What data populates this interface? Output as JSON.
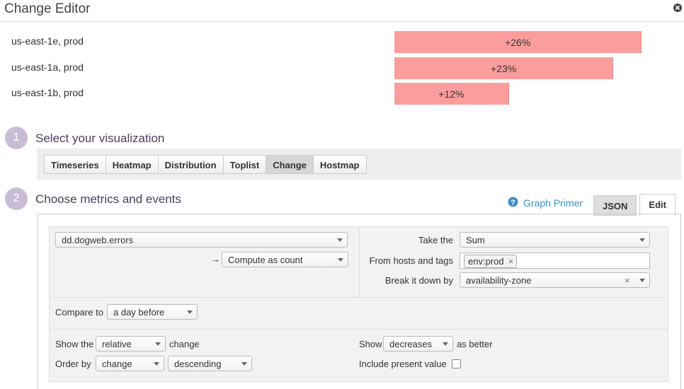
{
  "header": {
    "title": "Change Editor"
  },
  "preview": {
    "rows": [
      {
        "label": "us-east-1e, prod",
        "value": 26,
        "value_label": "+26%"
      },
      {
        "label": "us-east-1a, prod",
        "value": 23,
        "value_label": "+23%"
      },
      {
        "label": "us-east-1b, prod",
        "value": 12,
        "value_label": "+12%"
      }
    ]
  },
  "steps": [
    {
      "number": "1",
      "title": "Select your visualization"
    },
    {
      "number": "2",
      "title": "Choose metrics and events"
    }
  ],
  "visualization": {
    "tabs": [
      "Timeseries",
      "Heatmap",
      "Distribution",
      "Toplist",
      "Change",
      "Hostmap"
    ],
    "selected": 4
  },
  "editor": {
    "help_link": "Graph Primer",
    "tabs": [
      "JSON",
      "Edit"
    ],
    "selected_tab": 1,
    "metric": "dd.dogweb.errors",
    "compute": "Compute as count",
    "aggregation": {
      "label": "Take the",
      "value": "Sum"
    },
    "scope": {
      "label": "From hosts and tags",
      "tags": [
        "env:prod"
      ]
    },
    "group_by": {
      "label": "Break it down by",
      "value": "availability-zone"
    },
    "compare": {
      "label": "Compare to",
      "value": "a day before"
    },
    "show": {
      "label": "Show the",
      "value": "relative",
      "suffix": "change"
    },
    "order": {
      "label": "Order by",
      "value": "change",
      "direction": "descending"
    },
    "better": {
      "label": "Show",
      "value": "decreases",
      "suffix": "as better"
    },
    "include_present": {
      "label": "Include present value",
      "checked": false
    }
  }
}
